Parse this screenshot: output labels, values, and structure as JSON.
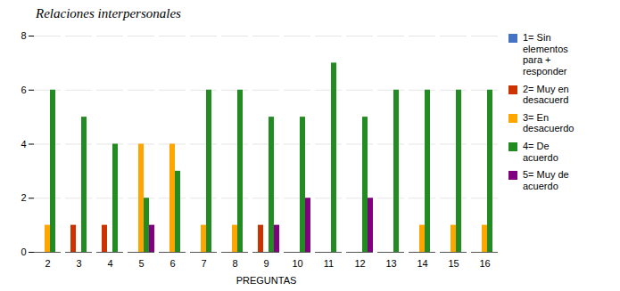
{
  "chart_data": {
    "type": "bar",
    "title": "Relaciones interpersonales",
    "xlabel": "PREGUNTAS",
    "categories": [
      2,
      3,
      4,
      5,
      6,
      7,
      8,
      9,
      10,
      11,
      12,
      13,
      14,
      15,
      16
    ],
    "series": [
      {
        "name": "1= Sin\nelementos\npara +\nresponder",
        "color": "#4472C4",
        "values": [
          0,
          0,
          0,
          0,
          0,
          0,
          0,
          0,
          0,
          0,
          0,
          0,
          0,
          0,
          0
        ]
      },
      {
        "name": "2= Muy en\ndesacuerd",
        "color": "#CC3300",
        "values": [
          0,
          1,
          1,
          0,
          0,
          0,
          0,
          1,
          0,
          0,
          0,
          0,
          0,
          0,
          0
        ]
      },
      {
        "name": "3= En\ndesacuerdo",
        "color": "#FFA500",
        "values": [
          1,
          0,
          0,
          4,
          4,
          1,
          1,
          0,
          0,
          0,
          0,
          0,
          1,
          1,
          1
        ]
      },
      {
        "name": "4= De\nacuerdo",
        "color": "#228B22",
        "values": [
          6,
          5,
          4,
          2,
          3,
          6,
          6,
          5,
          5,
          7,
          5,
          6,
          6,
          6,
          6
        ]
      },
      {
        "name": "5= Muy de\nacuerdo",
        "color": "#800080",
        "values": [
          0,
          0,
          0,
          1,
          0,
          0,
          0,
          1,
          2,
          0,
          2,
          0,
          0,
          0,
          0
        ]
      }
    ],
    "ylim": [
      0,
      8
    ],
    "yticks": [
      0,
      2,
      4,
      6,
      8
    ],
    "grid": true,
    "legend": "right"
  }
}
